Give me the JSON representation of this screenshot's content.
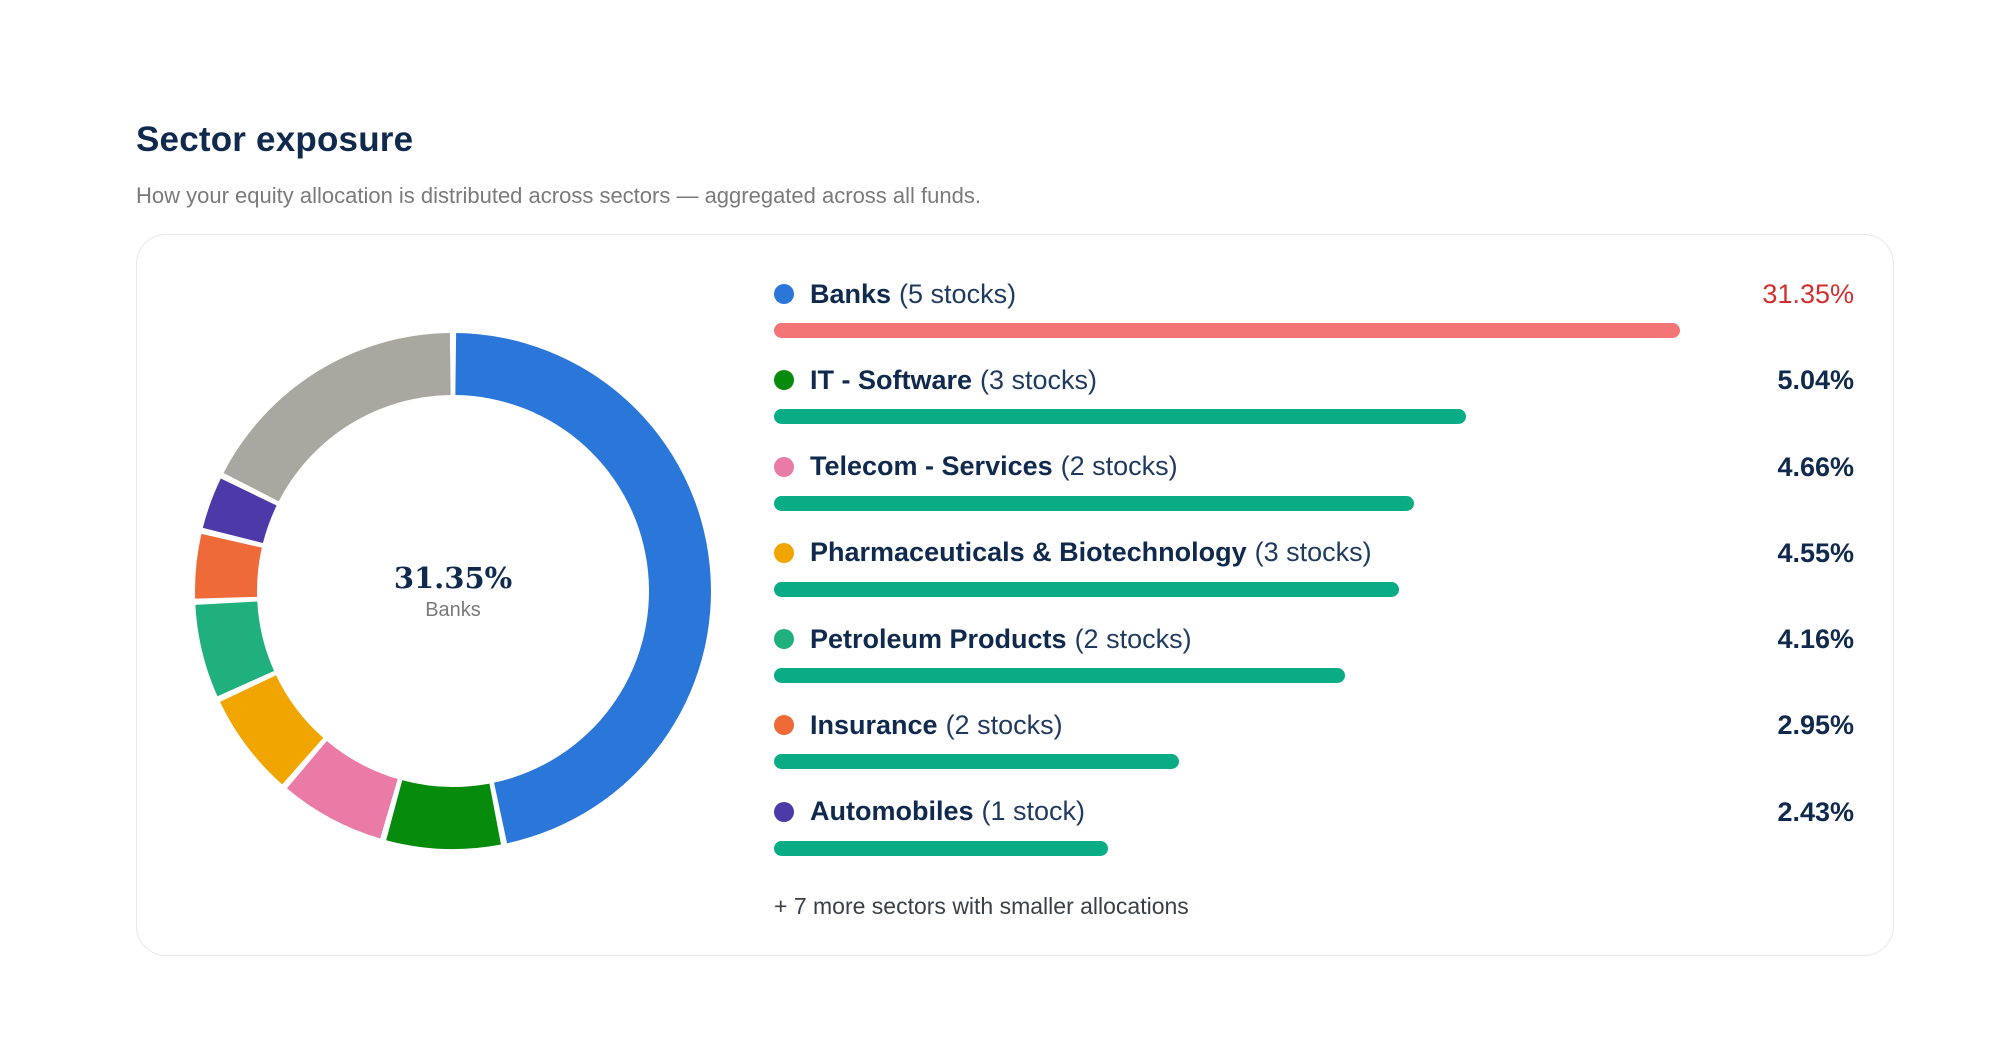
{
  "header": {
    "title": "Sector exposure",
    "subtitle": "How your equity allocation is distributed across sectors — aggregated across all funds."
  },
  "donut": {
    "center_value": "31.35%",
    "center_label": "Banks"
  },
  "chart_data": {
    "type": "pie",
    "style": "donut",
    "slices": [
      {
        "label": "Banks",
        "value": 31.35,
        "color": "#2b77d9"
      },
      {
        "label": "IT - Software",
        "value": 5.04,
        "color": "#068b0c"
      },
      {
        "label": "Telecom - Services",
        "value": 4.66,
        "color": "#e97ba6"
      },
      {
        "label": "Pharmaceuticals & Biotechnology",
        "value": 4.55,
        "color": "#f0a500"
      },
      {
        "label": "Petroleum Products",
        "value": 4.16,
        "color": "#1fb07e"
      },
      {
        "label": "Insurance",
        "value": 2.95,
        "color": "#ee6a39"
      },
      {
        "label": "Automobiles",
        "value": 2.43,
        "color": "#4d3aa8"
      },
      {
        "label": "",
        "value": 11.8,
        "color": "#a8a8a1"
      }
    ]
  },
  "sectors": [
    {
      "name": "Banks",
      "count": "(5 stocks)",
      "pct": "31.35%",
      "value": 31.35,
      "dot_color": "#2b77d9",
      "bar_color": "#f47575",
      "top": true
    },
    {
      "name": "IT - Software",
      "count": "(3 stocks)",
      "pct": "5.04%",
      "value": 5.04,
      "dot_color": "#068b0c",
      "bar_color": "#0aac85",
      "top": false
    },
    {
      "name": "Telecom - Services",
      "count": "(2 stocks)",
      "pct": "4.66%",
      "value": 4.66,
      "dot_color": "#e97ba6",
      "bar_color": "#0aac85",
      "top": false
    },
    {
      "name": "Pharmaceuticals & Biotechnology",
      "count": "(3 stocks)",
      "pct": "4.55%",
      "value": 4.55,
      "dot_color": "#f0a500",
      "bar_color": "#0aac85",
      "top": false
    },
    {
      "name": "Petroleum Products",
      "count": "(2 stocks)",
      "pct": "4.16%",
      "value": 4.16,
      "dot_color": "#1fb07e",
      "bar_color": "#0aac85",
      "top": false
    },
    {
      "name": "Insurance",
      "count": "(2 stocks)",
      "pct": "2.95%",
      "value": 2.95,
      "dot_color": "#ee6a39",
      "bar_color": "#0aac85",
      "top": false
    },
    {
      "name": "Automobiles",
      "count": "(1 stock)",
      "pct": "2.43%",
      "value": 2.43,
      "dot_color": "#4d3aa8",
      "bar_color": "#0aac85",
      "top": false
    }
  ],
  "more_text": "+ 7 more sectors with smaller allocations"
}
